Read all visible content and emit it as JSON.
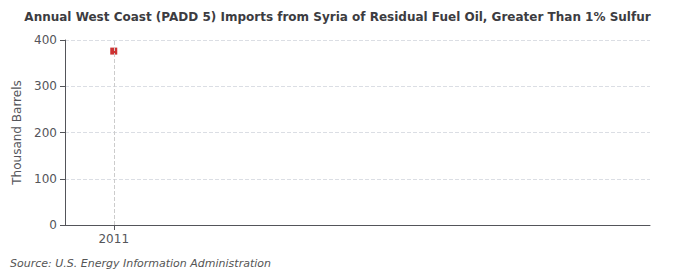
{
  "chart_data": {
    "type": "scatter",
    "title": "Annual West Coast (PADD 5) Imports from Syria of Residual Fuel Oil, Greater Than 1% Sulfur",
    "ylabel": "Thousand Barrels",
    "annotations": [
      "Source: U.S. Energy Information Administration"
    ],
    "x": [
      2011
    ],
    "values": [
      376
    ],
    "color": "#c00000",
    "marker": "square",
    "xlim": [
      2010.5,
      2016.5
    ],
    "xticks": [
      2011
    ],
    "ylim": [
      0,
      400
    ],
    "yticks": [
      0,
      100,
      200,
      300,
      400
    ],
    "grid": true
  }
}
